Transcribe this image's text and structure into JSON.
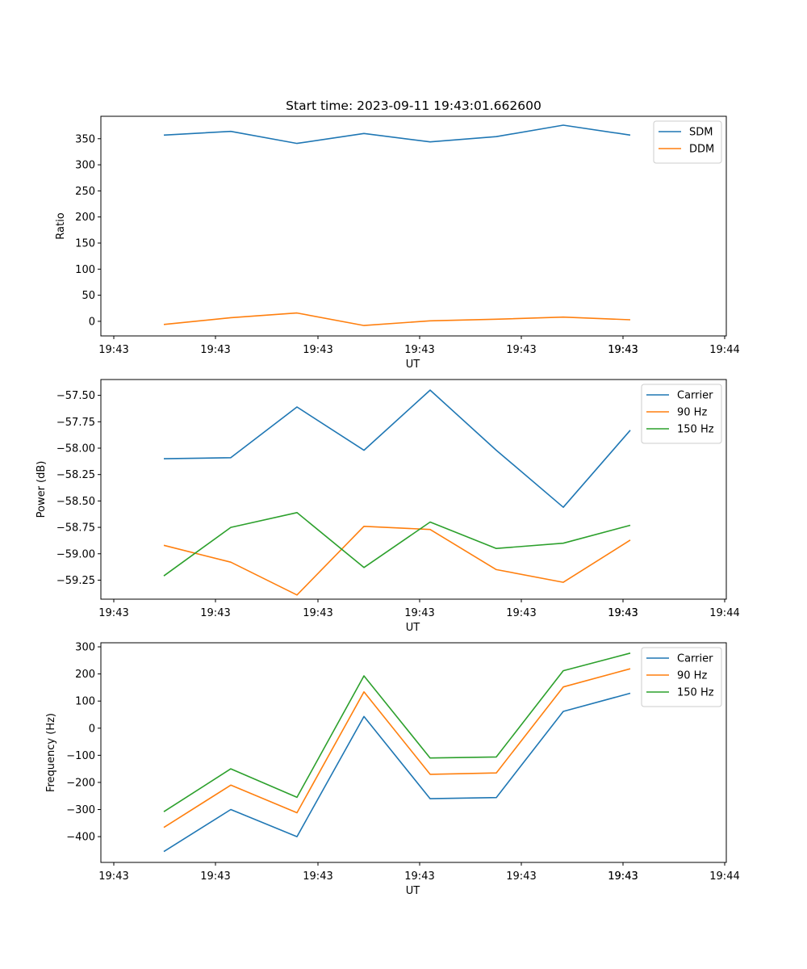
{
  "chart_data": [
    {
      "type": "line",
      "title": "Start time: 2023-09-11 19:43:01.662600",
      "xlabel": "UT",
      "ylabel": "Ratio",
      "x_tick_labels": [
        "19:43",
        "19:43",
        "19:43",
        "19:43",
        "19:43",
        "19:43",
        "19:43",
        "19:44"
      ],
      "y_ticks": [
        0,
        50,
        100,
        150,
        200,
        250,
        300,
        350
      ],
      "y_tick_labels": [
        "0",
        "50",
        "100",
        "150",
        "200",
        "250",
        "300",
        "350"
      ],
      "ylim": [
        -28,
        393
      ],
      "legend_position": "top-right",
      "series": [
        {
          "name": "SDM",
          "color": "#1f77b4",
          "values": [
            357,
            364,
            341,
            360,
            344,
            354,
            376,
            357
          ]
        },
        {
          "name": "DDM",
          "color": "#ff7f0e",
          "values": [
            -6,
            7,
            16,
            -8,
            1,
            4,
            8,
            3
          ]
        }
      ]
    },
    {
      "type": "line",
      "title": "",
      "xlabel": "UT",
      "ylabel": "Power (dB)",
      "x_tick_labels": [
        "19:43",
        "19:43",
        "19:43",
        "19:43",
        "19:43",
        "19:43",
        "19:43",
        "19:44"
      ],
      "y_ticks": [
        -57.5,
        -57.75,
        -58.0,
        -58.25,
        -58.5,
        -58.75,
        -59.0,
        -59.25
      ],
      "y_tick_labels": [
        "−57.50",
        "−57.75",
        "−58.00",
        "−58.25",
        "−58.50",
        "−58.75",
        "−59.00",
        "−59.25"
      ],
      "ylim": [
        -59.43,
        -57.35
      ],
      "legend_position": "top-right",
      "series": [
        {
          "name": "Carrier",
          "color": "#1f77b4",
          "values": [
            -58.1,
            -58.09,
            -57.61,
            -58.02,
            -57.45,
            -58.02,
            -58.56,
            -57.83
          ]
        },
        {
          "name": "90 Hz",
          "color": "#ff7f0e",
          "values": [
            -58.92,
            -59.08,
            -59.39,
            -58.74,
            -58.77,
            -59.15,
            -59.27,
            -58.87
          ]
        },
        {
          "name": "150 Hz",
          "color": "#2ca02c",
          "values": [
            -59.21,
            -58.75,
            -58.61,
            -59.13,
            -58.7,
            -58.95,
            -58.9,
            -58.73
          ]
        }
      ]
    },
    {
      "type": "line",
      "title": "",
      "xlabel": "UT",
      "ylabel": "Frequency (Hz)",
      "x_tick_labels": [
        "19:43",
        "19:43",
        "19:43",
        "19:43",
        "19:43",
        "19:43",
        "19:43",
        "19:44"
      ],
      "y_ticks": [
        300,
        200,
        100,
        0,
        -100,
        -200,
        -300,
        -400
      ],
      "y_tick_labels": [
        "300",
        "200",
        "100",
        "0",
        "−100",
        "−200",
        "−300",
        "−400"
      ],
      "ylim": [
        -495,
        315
      ],
      "legend_position": "top-right",
      "series": [
        {
          "name": "Carrier",
          "color": "#1f77b4",
          "values": [
            -455,
            -300,
            -400,
            43,
            -260,
            -256,
            62,
            129
          ]
        },
        {
          "name": "90 Hz",
          "color": "#ff7f0e",
          "values": [
            -366,
            -210,
            -312,
            134,
            -170,
            -165,
            152,
            219
          ]
        },
        {
          "name": "150 Hz",
          "color": "#2ca02c",
          "values": [
            -308,
            -150,
            -255,
            193,
            -110,
            -106,
            212,
            277
          ]
        }
      ]
    }
  ]
}
